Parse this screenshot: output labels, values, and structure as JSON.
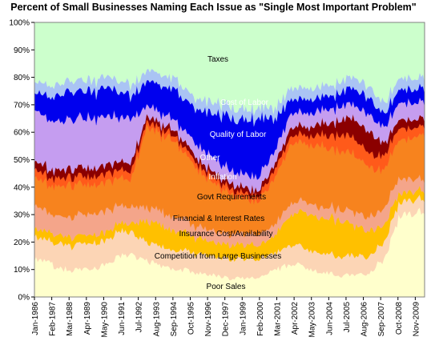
{
  "chart_data": {
    "type": "area",
    "title": "Percent of Small Businesses Naming Each Issue as \"Single Most Important Problem\"",
    "xlabel": "",
    "ylabel": "",
    "ylim": [
      0,
      100
    ],
    "y_ticks": [
      "0%",
      "10%",
      "20%",
      "30%",
      "40%",
      "50%",
      "60%",
      "70%",
      "80%",
      "90%",
      "100%"
    ],
    "x_ticks": [
      "Jan-1986",
      "Feb-1987",
      "Mar-1988",
      "Apr-1989",
      "May-1990",
      "Jun-1991",
      "Jul-1992",
      "Aug-1993",
      "Sep-1994",
      "Oct-1995",
      "Nov-1996",
      "Dec-1997",
      "Jan-1999",
      "Feb-2000",
      "Mar-2001",
      "Apr-2002",
      "May-2003",
      "Jun-2004",
      "Jul-2005",
      "Aug-2006",
      "Sep-2007",
      "Oct-2008",
      "Nov-2009"
    ],
    "stacking": "cumulative percent",
    "x": [
      "1986-01",
      "1987-01",
      "1988-01",
      "1989-01",
      "1990-01",
      "1991-01",
      "1992-01",
      "1993-01",
      "1994-01",
      "1995-01",
      "1996-01",
      "1997-01",
      "1998-01",
      "1999-01",
      "2000-01",
      "2001-01",
      "2002-01",
      "2003-01",
      "2004-01",
      "2005-01",
      "2006-01",
      "2007-01",
      "2008-01",
      "2009-01",
      "2010-06"
    ],
    "series": [
      {
        "name": "Poor Sales",
        "color": "#ffffcc",
        "values": [
          15,
          12,
          10,
          10,
          11,
          14,
          16,
          13,
          11,
          10,
          9,
          8,
          7,
          7,
          7,
          10,
          12,
          11,
          9,
          8,
          8,
          9,
          15,
          32,
          30
        ]
      },
      {
        "name": "Competition from Large Businesses",
        "color": "#fcd5b5",
        "values": [
          8,
          8,
          9,
          9,
          9,
          9,
          8,
          7,
          7,
          7,
          7,
          7,
          7,
          7,
          7,
          6,
          7,
          7,
          7,
          7,
          7,
          6,
          6,
          5,
          5
        ]
      },
      {
        "name": "Insurance Cost/Availability",
        "color": "#ffc000",
        "values": [
          3,
          3,
          3,
          3,
          3,
          3,
          3,
          8,
          8,
          7,
          6,
          5,
          5,
          5,
          5,
          6,
          11,
          13,
          13,
          13,
          11,
          9,
          6,
          3,
          3
        ]
      },
      {
        "name": "Financial & Interest Rates",
        "color": "#f4a58a",
        "values": [
          9,
          7,
          7,
          8,
          8,
          7,
          6,
          5,
          5,
          5,
          4,
          4,
          4,
          4,
          4,
          4,
          4,
          4,
          4,
          4,
          5,
          5,
          6,
          5,
          4
        ]
      },
      {
        "name": "Govt Requirements",
        "color": "#f7831e",
        "values": [
          10,
          10,
          11,
          11,
          10,
          10,
          10,
          28,
          28,
          26,
          22,
          18,
          15,
          13,
          12,
          16,
          22,
          22,
          22,
          21,
          21,
          18,
          14,
          14,
          16
        ]
      },
      {
        "name": "Inflation",
        "color": "#ff5a1a",
        "values": [
          3,
          3,
          3,
          3,
          3,
          3,
          3,
          2,
          2,
          2,
          2,
          2,
          2,
          2,
          2,
          3,
          3,
          3,
          4,
          6,
          6,
          5,
          5,
          4,
          3
        ]
      },
      {
        "name": "Other",
        "color": "#8b0000",
        "values": [
          3,
          3,
          3,
          3,
          3,
          3,
          3,
          2,
          2,
          2,
          2,
          2,
          2,
          2,
          2,
          2,
          3,
          3,
          4,
          5,
          7,
          8,
          4,
          3,
          3
        ]
      },
      {
        "name": "Quality of Labor",
        "color": "#c59df0",
        "values": [
          18,
          18,
          18,
          18,
          18,
          17,
          16,
          4,
          4,
          4,
          5,
          5,
          5,
          5,
          5,
          5,
          5,
          5,
          5,
          5,
          5,
          6,
          6,
          6,
          6
        ]
      },
      {
        "name": "Cost of Labor",
        "color": "#0000ee",
        "values": [
          6,
          9,
          10,
          10,
          10,
          10,
          8,
          9,
          10,
          11,
          12,
          16,
          19,
          20,
          21,
          12,
          5,
          5,
          5,
          5,
          6,
          6,
          5,
          5,
          5
        ]
      },
      {
        "name": "Taxes",
        "color": "#aac4f4",
        "values": [
          4,
          4,
          4,
          4,
          4,
          4,
          4,
          4,
          4,
          4,
          4,
          4,
          4,
          4,
          4,
          4,
          4,
          4,
          4,
          4,
          4,
          4,
          4,
          4,
          4
        ]
      },
      {
        "name": "",
        "color": "#ccffcc",
        "values": [
          21,
          23,
          22,
          21,
          21,
          20,
          23,
          18,
          19,
          22,
          27,
          29,
          30,
          31,
          31,
          32,
          24,
          23,
          23,
          22,
          20,
          24,
          29,
          19,
          21
        ]
      }
    ],
    "band_labels": [
      {
        "text": "Taxes",
        "color": "#000000"
      },
      {
        "text": "Cost of Labor",
        "color": "#ffffff"
      },
      {
        "text": "Quality of Labor",
        "color": "#ffffff"
      },
      {
        "text": "Other",
        "color": "#ffffff"
      },
      {
        "text": "Inflation",
        "color": "#ffffff"
      },
      {
        "text": "Govt Requirements",
        "color": "#000000"
      },
      {
        "text": "Financial & Interest Rates",
        "color": "#000000"
      },
      {
        "text": "Insurance Cost/Availability",
        "color": "#000000"
      },
      {
        "text": "Competition from Large Businesses",
        "color": "#000000"
      },
      {
        "text": "Poor Sales",
        "color": "#000000"
      }
    ]
  }
}
